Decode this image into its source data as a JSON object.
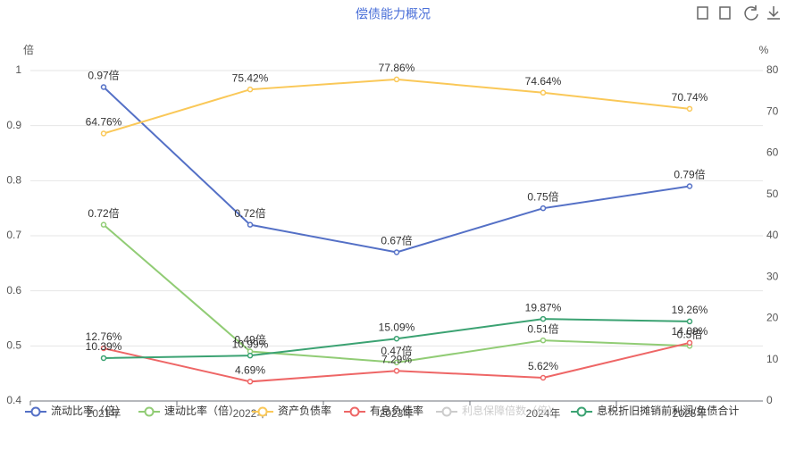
{
  "chart_data": {
    "type": "line",
    "title": "偿债能力概况",
    "y_label": "倍",
    "y2_label": "%",
    "categories": [
      "2021年",
      "2022年",
      "2023年",
      "2024年",
      "2025年"
    ],
    "ylim": [
      0.4,
      1
    ],
    "yticks": [
      0.4,
      0.5,
      0.6,
      0.7,
      0.8,
      0.9,
      1
    ],
    "y2lim": [
      0,
      80
    ],
    "y2ticks": [
      0,
      10,
      20,
      30,
      40,
      50,
      60,
      70,
      80
    ],
    "grid": true,
    "legend": "bottom",
    "series": [
      {
        "name": "流动比率（倍）",
        "color": "#5470c6",
        "values": [
          0.97,
          0.72,
          0.67,
          0.75,
          0.79
        ],
        "value_labels": [
          "0.97倍",
          "0.72倍",
          "0.67倍",
          "0.75倍",
          "0.79倍"
        ]
      },
      {
        "name": "速动比率（倍）",
        "color": "#91cc75",
        "values": [
          0.72,
          0.49,
          0.47,
          0.51,
          0.5
        ],
        "value_labels": [
          "0.72倍",
          "0.49倍",
          "0.47倍",
          "0.51倍",
          "0.5倍"
        ]
      },
      {
        "name": "资产负债率",
        "color": "#fac858",
        "axis": "y2",
        "values": [
          64.76,
          75.42,
          77.86,
          74.64,
          70.74
        ],
        "value_labels": [
          "64.76%",
          "75.42%",
          "77.86%",
          "74.64%",
          "70.74%"
        ]
      },
      {
        "name": "有息负债率",
        "color": "#ee6666",
        "axis": "y2",
        "values": [
          12.76,
          4.69,
          7.29,
          5.62,
          14.09
        ],
        "value_labels": [
          "12.76%",
          "4.69%",
          "7.29%",
          "5.62%",
          "14.09%"
        ]
      },
      {
        "name": "利息保障倍数（倍）",
        "color": "#cccccc",
        "visible": false,
        "values": [
          null,
          null,
          null,
          null,
          null
        ]
      },
      {
        "name": "息税折旧摊销前利润/负债合计",
        "color": "#3ba272",
        "axis": "y2",
        "values": [
          10.39,
          10.99,
          15.09,
          19.87,
          19.26
        ],
        "value_labels": [
          "10.39%",
          "10.99%",
          "15.09%",
          "19.87%",
          "19.26%"
        ]
      }
    ]
  }
}
